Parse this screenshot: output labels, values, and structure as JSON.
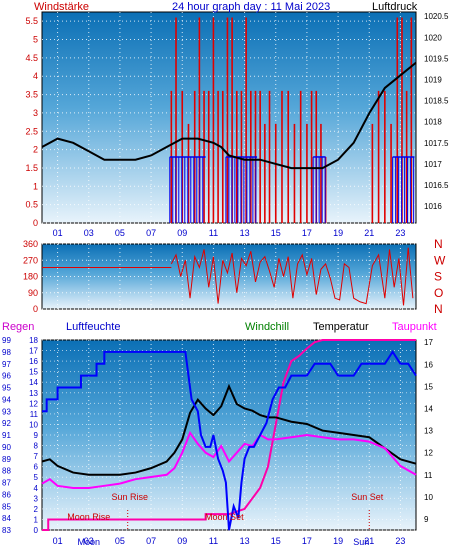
{
  "title": "24 hour graph day : 11 Mai 2023",
  "colors": {
    "wind": "#e00000",
    "gust": "#0000ee",
    "pressure": "#000000",
    "humidity": "#0000ff",
    "windchill": "#008000",
    "temperature": "#000000",
    "dewpoint": "#ff00ff",
    "rain": "#cc0066",
    "label_blue": "#0000cc",
    "label_red": "#cc0000",
    "label_rain": "#cc00cc"
  },
  "chart_data": [
    {
      "type": "line",
      "name": "wind-pressure",
      "title": "24 hour graph day : 11 Mai 2023",
      "left_label": "Windstärke",
      "right_label": "Luftdruck",
      "x_ticks": [
        "01",
        "03",
        "05",
        "07",
        "09",
        "11",
        "13",
        "15",
        "17",
        "19",
        "21",
        "23"
      ],
      "y_left_ticks": [
        "0",
        "0.5",
        "1",
        "1.5",
        "2",
        "2.5",
        "3",
        "3.5",
        "4",
        "4.5",
        "5",
        "5.5"
      ],
      "y_left_range": [
        0,
        5.75
      ],
      "y_right_ticks": [
        "1016",
        "1016.5",
        "1017",
        "1017.5",
        "1018",
        "1018.5",
        "1019",
        "1019.5",
        "1020",
        "1020.5"
      ],
      "y_right_range": [
        1015.6,
        1020.6
      ],
      "pressure": {
        "hours": [
          0.0,
          1.0,
          2.0,
          3.0,
          4.0,
          5.0,
          6.0,
          7.0,
          8.0,
          9.0,
          10.0,
          11.0,
          11.5,
          12.0,
          13.0,
          14.0,
          15.0,
          16.0,
          17.0,
          18.0,
          19.0,
          20.0,
          21.0,
          22.0,
          23.0,
          24.0
        ],
        "values": [
          1017.4,
          1017.6,
          1017.5,
          1017.3,
          1017.1,
          1017.1,
          1017.1,
          1017.2,
          1017.4,
          1017.6,
          1017.6,
          1017.5,
          1017.4,
          1017.2,
          1017.1,
          1017.1,
          1017.0,
          1016.9,
          1016.9,
          1016.9,
          1017.1,
          1017.5,
          1018.2,
          1018.8,
          1019.1,
          1019.4
        ]
      },
      "wind_gust_spans": [
        [
          8.2,
          10.5
        ],
        [
          11.8,
          13.8
        ],
        [
          17.4,
          18.2
        ],
        [
          22.5,
          23.9
        ]
      ],
      "wind_gust_level": 1.8,
      "wind_spikes": {
        "hours": [
          8.3,
          8.6,
          9.0,
          9.4,
          9.8,
          10.1,
          10.4,
          10.7,
          11.0,
          11.3,
          11.6,
          11.9,
          12.2,
          12.5,
          12.8,
          13.1,
          13.4,
          13.7,
          14.0,
          14.3,
          14.6,
          15.0,
          15.4,
          15.8,
          16.2,
          16.6,
          17.0,
          17.3,
          17.6,
          17.9,
          18.2,
          21.2,
          21.6,
          22.0,
          22.4,
          22.8,
          23.1,
          23.4,
          23.7
        ],
        "values": [
          3.6,
          5.6,
          3.6,
          2.7,
          3.6,
          5.6,
          3.6,
          3.6,
          5.6,
          3.6,
          3.6,
          5.6,
          5.6,
          3.6,
          3.6,
          5.6,
          3.6,
          3.6,
          3.6,
          2.7,
          3.6,
          2.7,
          3.6,
          3.6,
          2.7,
          3.6,
          2.7,
          3.6,
          3.6,
          2.7,
          1.8,
          2.7,
          3.6,
          3.6,
          2.7,
          5.6,
          5.6,
          3.6,
          5.6
        ]
      }
    },
    {
      "type": "line",
      "name": "wind-direction",
      "y_ticks": [
        "0",
        "90",
        "180",
        "270",
        "360"
      ],
      "y_range": [
        0,
        360
      ],
      "right_labels": [
        "N",
        "W",
        "S",
        "O",
        "N"
      ],
      "baseline_hours": [
        0.0,
        8.3
      ],
      "baseline_value": 230,
      "hours": [
        8.3,
        8.6,
        8.9,
        9.2,
        9.5,
        9.8,
        10.1,
        10.4,
        10.7,
        11.0,
        11.3,
        11.6,
        11.9,
        12.2,
        12.5,
        12.8,
        13.1,
        13.4,
        13.7,
        14.0,
        14.3,
        14.6,
        14.9,
        15.2,
        15.5,
        15.8,
        16.1,
        16.4,
        16.7,
        17.0,
        17.3,
        17.6,
        17.9,
        18.2,
        18.5,
        18.8,
        19.1,
        19.4,
        19.7,
        20.0,
        20.4,
        20.8,
        21.2,
        21.6,
        22.0,
        22.3,
        22.6,
        22.9,
        23.2,
        23.5,
        23.8
      ],
      "values": [
        250,
        300,
        180,
        270,
        60,
        290,
        230,
        330,
        120,
        290,
        30,
        270,
        200,
        310,
        90,
        280,
        240,
        320,
        150,
        260,
        290,
        210,
        120,
        280,
        180,
        290,
        60,
        250,
        300,
        190,
        280,
        80,
        220,
        250,
        170,
        60,
        50,
        250,
        230,
        60,
        40,
        30,
        240,
        300,
        60,
        330,
        120,
        280,
        20,
        340,
        60
      ]
    },
    {
      "type": "line",
      "name": "humidity-temperature",
      "headers": [
        "Regen",
        "Luftfeuchte",
        "Windchill",
        "Temperatur",
        "Taupunkt"
      ],
      "x_ticks": [
        "01",
        "03",
        "05",
        "07",
        "09",
        "11",
        "13",
        "15",
        "17",
        "19",
        "21",
        "23"
      ],
      "y_humidity_ticks": [
        "83",
        "84",
        "85",
        "86",
        "87",
        "88",
        "89",
        "90",
        "91",
        "92",
        "93",
        "94",
        "95",
        "96",
        "97",
        "98",
        "99"
      ],
      "y_humidity_range": [
        83,
        99
      ],
      "y_rain_ticks": [
        "0",
        "1",
        "2",
        "3",
        "4",
        "5",
        "6",
        "7",
        "8",
        "9",
        "10",
        "11",
        "12",
        "13",
        "14",
        "15",
        "16",
        "17",
        "18"
      ],
      "y_rain_range": [
        0,
        18
      ],
      "y_temp_ticks": [
        "9",
        "10",
        "11",
        "12",
        "13",
        "14",
        "15",
        "16",
        "17"
      ],
      "y_temp_range": [
        8.5,
        17.1
      ],
      "humidity": {
        "hours": [
          0.0,
          0.3,
          0.3,
          1.0,
          1.0,
          2.5,
          2.5,
          3.5,
          3.5,
          4.0,
          4.0,
          9.2,
          9.4,
          9.6,
          10.0,
          10.2,
          10.5,
          10.8,
          11.0,
          11.3,
          11.6,
          11.8,
          12.0,
          12.3,
          12.6,
          12.8,
          13.0,
          13.3,
          13.6,
          14.0,
          14.4,
          14.8,
          15.2,
          15.6,
          16.0,
          16.5,
          17.0,
          17.5,
          18.0,
          18.5,
          19.0,
          19.5,
          20.0,
          20.5,
          21.0,
          21.5,
          22.0,
          22.5,
          23.0,
          23.5,
          24.0
        ],
        "values": [
          93,
          93,
          94,
          94,
          95,
          95,
          96,
          96,
          97,
          97,
          98,
          98,
          96,
          94,
          93,
          91,
          90,
          90,
          91,
          89,
          88,
          87,
          83,
          85,
          84,
          87,
          89,
          90,
          90,
          91,
          92,
          94,
          95,
          95,
          96,
          96,
          96,
          97,
          97,
          97,
          96,
          96,
          96,
          97,
          97,
          97,
          97,
          98,
          97,
          97,
          96
        ]
      },
      "temperature": {
        "hours": [
          0.0,
          0.5,
          1.0,
          2.0,
          3.0,
          4.0,
          5.0,
          6.0,
          7.0,
          8.0,
          8.5,
          9.0,
          9.5,
          10.0,
          10.5,
          11.0,
          11.5,
          12.0,
          12.5,
          13.0,
          13.5,
          14.0,
          14.5,
          15.0,
          16.0,
          17.0,
          18.0,
          19.0,
          20.0,
          21.0,
          22.0,
          23.0,
          24.0
        ],
        "values": [
          11.6,
          11.7,
          11.4,
          11.1,
          11.0,
          11.0,
          11.0,
          11.1,
          11.3,
          11.6,
          12.0,
          12.6,
          13.8,
          14.4,
          14.0,
          13.7,
          14.1,
          15.0,
          14.2,
          14.0,
          13.9,
          13.7,
          13.6,
          13.6,
          13.4,
          13.3,
          13.0,
          12.9,
          12.8,
          12.7,
          12.2,
          11.7,
          11.5
        ]
      },
      "dewpoint": {
        "hours": [
          0.0,
          0.5,
          1.0,
          2.0,
          3.0,
          4.0,
          5.0,
          6.0,
          7.0,
          8.0,
          8.5,
          9.0,
          9.5,
          10.0,
          10.5,
          11.0,
          11.5,
          12.0,
          12.5,
          13.0,
          13.5,
          14.0,
          14.5,
          15.0,
          16.0,
          17.0,
          18.0,
          19.0,
          20.0,
          21.0,
          22.0,
          23.0,
          24.0
        ],
        "values": [
          10.6,
          10.8,
          10.5,
          10.4,
          10.4,
          10.5,
          10.6,
          10.8,
          10.9,
          11.0,
          11.3,
          12.0,
          12.9,
          12.4,
          12.0,
          11.8,
          12.3,
          11.6,
          12.0,
          12.4,
          12.3,
          12.8,
          12.6,
          12.6,
          12.7,
          12.8,
          12.7,
          12.6,
          12.6,
          12.5,
          12.2,
          11.4,
          11.0
        ]
      },
      "rain": {
        "hours": [
          0.0,
          0.4,
          0.4,
          5.3,
          5.3,
          10.5,
          10.5,
          12.0,
          13.0,
          13.5,
          14.0,
          14.5,
          15.0,
          15.5,
          16.0,
          16.5,
          17.0,
          17.5,
          18.0,
          18.5,
          19.0,
          19.5,
          20.0,
          24.0
        ],
        "values": [
          0,
          0,
          1,
          1,
          1,
          1,
          1.5,
          1.5,
          2,
          3,
          4,
          6,
          10,
          14,
          16,
          16.5,
          17.2,
          17.8,
          18,
          18,
          18,
          18,
          18,
          18
        ]
      },
      "annotations": {
        "sun_rise_label": "Sun Rise",
        "sun_rise_hour": 5.5,
        "sun_set_label": "Sun Set",
        "sun_set_hour": 21.0,
        "moon_rise_label": "Moon Rise",
        "moon_rise_hour": 3.0,
        "moon_set_label": "Moon Set",
        "moon_set_hour": 11.7,
        "moon_label_axis": "Moon",
        "sun_label_axis": "Sun"
      }
    }
  ]
}
